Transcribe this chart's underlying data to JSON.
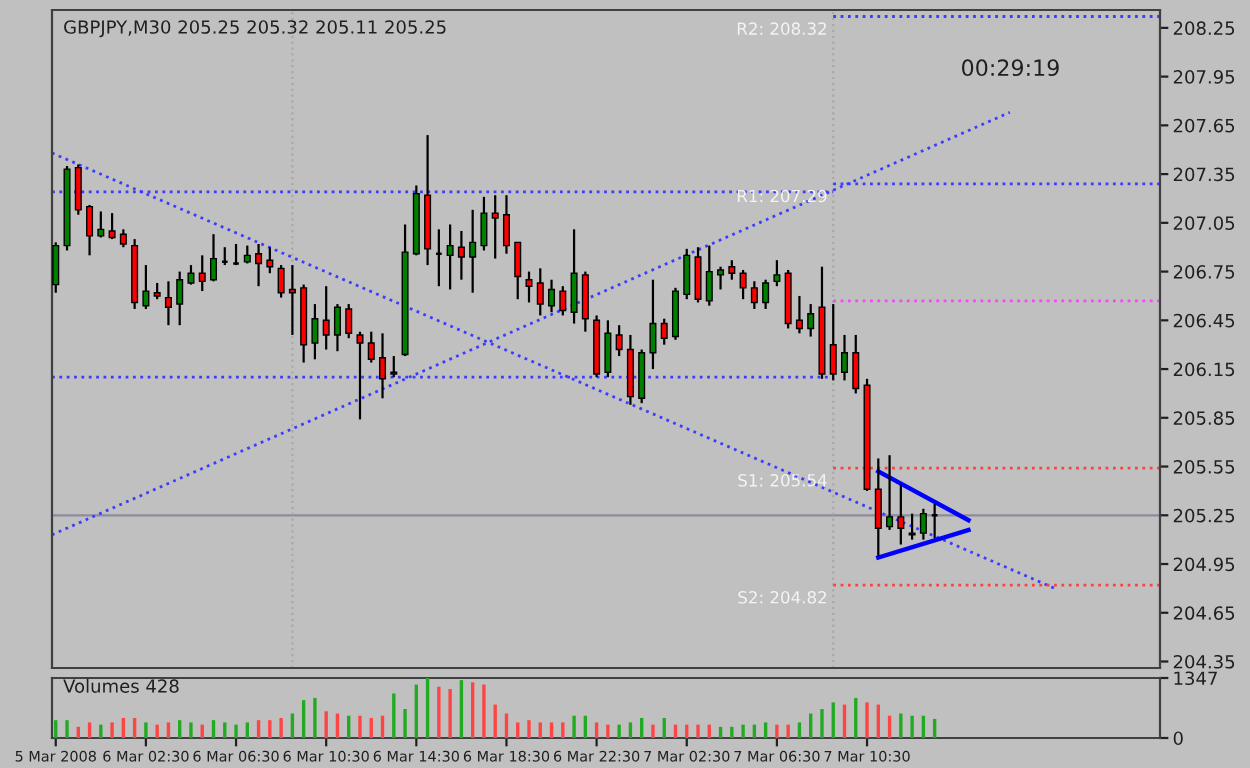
{
  "chart_data": [
    {
      "type": "candlestick",
      "title": "GBPJPY,M30 205.25 205.32 205.11 205.25",
      "x": [
        "2008-03-05T22:30",
        "2008-03-05T23:00",
        "2008-03-05T23:30",
        "2008-03-06T00:00",
        "2008-03-06T00:30",
        "2008-03-06T01:00",
        "2008-03-06T01:30",
        "2008-03-06T02:00",
        "2008-03-06T02:30",
        "2008-03-06T03:00",
        "2008-03-06T03:30",
        "2008-03-06T04:00",
        "2008-03-06T04:30",
        "2008-03-06T05:00",
        "2008-03-06T05:30",
        "2008-03-06T06:00",
        "2008-03-06T06:30",
        "2008-03-06T07:00",
        "2008-03-06T07:30",
        "2008-03-06T08:00",
        "2008-03-06T08:30",
        "2008-03-06T09:00",
        "2008-03-06T09:30",
        "2008-03-06T10:00",
        "2008-03-06T10:30",
        "2008-03-06T11:00",
        "2008-03-06T11:30",
        "2008-03-06T12:00",
        "2008-03-06T12:30",
        "2008-03-06T13:00",
        "2008-03-06T13:30",
        "2008-03-06T14:00",
        "2008-03-06T14:30",
        "2008-03-06T15:00",
        "2008-03-06T15:30",
        "2008-03-06T16:00",
        "2008-03-06T16:30",
        "2008-03-06T17:00",
        "2008-03-06T17:30",
        "2008-03-06T18:00",
        "2008-03-06T18:30",
        "2008-03-06T19:00",
        "2008-03-06T19:30",
        "2008-03-06T20:00",
        "2008-03-06T20:30",
        "2008-03-06T21:00",
        "2008-03-06T21:30",
        "2008-03-06T22:00",
        "2008-03-06T22:30",
        "2008-03-06T23:00",
        "2008-03-06T23:30",
        "2008-03-07T00:00",
        "2008-03-07T00:30",
        "2008-03-07T01:00",
        "2008-03-07T01:30",
        "2008-03-07T02:00",
        "2008-03-07T02:30",
        "2008-03-07T03:00",
        "2008-03-07T03:30",
        "2008-03-07T04:00",
        "2008-03-07T04:30",
        "2008-03-07T05:00",
        "2008-03-07T05:30",
        "2008-03-07T06:00",
        "2008-03-07T06:30",
        "2008-03-07T07:00",
        "2008-03-07T07:30",
        "2008-03-07T08:00",
        "2008-03-07T08:30",
        "2008-03-07T09:00",
        "2008-03-07T09:30",
        "2008-03-07T10:00",
        "2008-03-07T10:30",
        "2008-03-07T11:00",
        "2008-03-07T11:30",
        "2008-03-07T12:00",
        "2008-03-07T12:30",
        "2008-03-07T13:00",
        "2008-03-07T13:30"
      ],
      "ohlc": [
        [
          206.67,
          206.93,
          206.62,
          206.91
        ],
        [
          206.91,
          207.4,
          206.88,
          207.38
        ],
        [
          207.39,
          207.41,
          207.1,
          207.13
        ],
        [
          207.15,
          207.16,
          206.85,
          206.97
        ],
        [
          206.97,
          207.12,
          206.96,
          207.01
        ],
        [
          207.0,
          207.11,
          206.95,
          206.96
        ],
        [
          206.98,
          207.01,
          206.9,
          206.92
        ],
        [
          206.91,
          206.95,
          206.52,
          206.56
        ],
        [
          206.54,
          206.79,
          206.52,
          206.63
        ],
        [
          206.62,
          206.68,
          206.58,
          206.6
        ],
        [
          206.59,
          206.69,
          206.42,
          206.53
        ],
        [
          206.55,
          206.75,
          206.42,
          206.7
        ],
        [
          206.68,
          206.79,
          206.67,
          206.74
        ],
        [
          206.74,
          206.85,
          206.63,
          206.69
        ],
        [
          206.7,
          206.98,
          206.69,
          206.83
        ],
        [
          206.81,
          206.9,
          206.79,
          206.81
        ],
        [
          206.8,
          206.92,
          206.79,
          206.8
        ],
        [
          206.81,
          206.91,
          206.8,
          206.85
        ],
        [
          206.86,
          206.92,
          206.66,
          206.8
        ],
        [
          206.82,
          206.9,
          206.74,
          206.78
        ],
        [
          206.77,
          206.79,
          206.59,
          206.62
        ],
        [
          206.64,
          206.79,
          206.36,
          206.62
        ],
        [
          206.65,
          206.67,
          206.19,
          206.3
        ],
        [
          206.31,
          206.55,
          206.21,
          206.46
        ],
        [
          206.45,
          206.66,
          206.27,
          206.36
        ],
        [
          206.36,
          206.55,
          206.26,
          206.53
        ],
        [
          206.52,
          206.55,
          206.34,
          206.37
        ],
        [
          206.36,
          206.38,
          205.84,
          206.31
        ],
        [
          206.31,
          206.38,
          206.19,
          206.21
        ],
        [
          206.22,
          206.37,
          205.97,
          206.09
        ],
        [
          206.12,
          206.23,
          206.1,
          206.13
        ],
        [
          206.24,
          207.04,
          206.23,
          206.87
        ],
        [
          206.86,
          207.28,
          206.85,
          207.23
        ],
        [
          207.22,
          207.59,
          206.79,
          206.89
        ],
        [
          206.86,
          207.01,
          206.66,
          206.86
        ],
        [
          206.85,
          207.04,
          206.64,
          206.91
        ],
        [
          206.9,
          207.0,
          206.7,
          206.84
        ],
        [
          206.84,
          207.13,
          206.62,
          206.93
        ],
        [
          206.91,
          207.21,
          206.88,
          207.11
        ],
        [
          207.11,
          207.22,
          206.83,
          207.08
        ],
        [
          207.1,
          207.22,
          206.86,
          206.91
        ],
        [
          206.93,
          206.93,
          206.58,
          206.72
        ],
        [
          206.7,
          206.75,
          206.56,
          206.66
        ],
        [
          206.68,
          206.77,
          206.48,
          206.55
        ],
        [
          206.54,
          206.7,
          206.5,
          206.64
        ],
        [
          206.63,
          206.66,
          206.48,
          206.51
        ],
        [
          206.5,
          207.01,
          206.43,
          206.74
        ],
        [
          206.73,
          206.75,
          206.38,
          206.46
        ],
        [
          206.45,
          206.48,
          206.1,
          206.12
        ],
        [
          206.13,
          206.45,
          206.1,
          206.37
        ],
        [
          206.36,
          206.42,
          206.23,
          206.27
        ],
        [
          206.27,
          206.36,
          205.93,
          205.98
        ],
        [
          205.97,
          206.27,
          205.94,
          206.25
        ],
        [
          206.25,
          206.7,
          206.15,
          206.43
        ],
        [
          206.43,
          206.46,
          206.3,
          206.34
        ],
        [
          206.35,
          206.65,
          206.33,
          206.63
        ],
        [
          206.61,
          206.89,
          206.58,
          206.85
        ],
        [
          206.84,
          206.9,
          206.56,
          206.58
        ],
        [
          206.57,
          206.91,
          206.54,
          206.75
        ],
        [
          206.73,
          206.78,
          206.64,
          206.76
        ],
        [
          206.78,
          206.82,
          206.7,
          206.74
        ],
        [
          206.74,
          206.76,
          206.58,
          206.65
        ],
        [
          206.65,
          206.69,
          206.52,
          206.56
        ],
        [
          206.56,
          206.7,
          206.52,
          206.68
        ],
        [
          206.69,
          206.82,
          206.66,
          206.73
        ],
        [
          206.74,
          206.76,
          206.4,
          206.43
        ],
        [
          206.45,
          206.6,
          206.37,
          206.4
        ],
        [
          206.4,
          206.55,
          206.35,
          206.49
        ],
        [
          206.53,
          206.78,
          206.09,
          206.12
        ],
        [
          206.3,
          206.55,
          206.08,
          206.12
        ],
        [
          206.13,
          206.36,
          206.08,
          206.25
        ],
        [
          206.25,
          206.36,
          206.0,
          206.03
        ],
        [
          206.05,
          206.09,
          205.4,
          205.41
        ],
        [
          205.41,
          205.6,
          205.0,
          205.17
        ],
        [
          205.18,
          205.62,
          205.16,
          205.24
        ],
        [
          205.24,
          205.44,
          205.07,
          205.17
        ],
        [
          205.13,
          205.26,
          205.1,
          205.14
        ],
        [
          205.14,
          205.29,
          205.1,
          205.26
        ],
        [
          205.25,
          205.32,
          205.11,
          205.25
        ]
      ],
      "colors": [
        "#008000",
        "#008000",
        "#ff0000",
        "#ff0000",
        "#008000",
        "#ff0000",
        "#ff0000",
        "#ff0000",
        "#008000",
        "#ff0000",
        "#ff0000",
        "#008000",
        "#008000",
        "#ff0000",
        "#008000",
        "#000000",
        "#000000",
        "#008000",
        "#ff0000",
        "#ff0000",
        "#ff0000",
        "#ff0000",
        "#ff0000",
        "#008000",
        "#ff0000",
        "#008000",
        "#ff0000",
        "#ff0000",
        "#ff0000",
        "#ff0000",
        "#008000",
        "#008000",
        "#008000",
        "#ff0000",
        "#000000",
        "#008000",
        "#ff0000",
        "#008000",
        "#008000",
        "#ff0000",
        "#ff0000",
        "#ff0000",
        "#ff0000",
        "#ff0000",
        "#008000",
        "#ff0000",
        "#008000",
        "#ff0000",
        "#ff0000",
        "#008000",
        "#ff0000",
        "#ff0000",
        "#008000",
        "#008000",
        "#ff0000",
        "#008000",
        "#008000",
        "#ff0000",
        "#008000",
        "#008000",
        "#ff0000",
        "#ff0000",
        "#ff0000",
        "#008000",
        "#008000",
        "#ff0000",
        "#ff0000",
        "#008000",
        "#ff0000",
        "#ff0000",
        "#008000",
        "#ff0000",
        "#ff0000",
        "#ff0000",
        "#008000",
        "#ff0000",
        "#008000",
        "#008000",
        "#000000"
      ],
      "series": [
        {
          "type": "line",
          "x": [
            "2008-03-05T22:20",
            "2008-03-07T18:50"
          ],
          "values": [
            207.48,
            204.8
          ],
          "color": "#3c3cff",
          "line_style": "dotted"
        },
        {
          "type": "line",
          "x": [
            "2008-03-05T22:20",
            "2008-03-07T16:50"
          ],
          "values": [
            205.13,
            207.73
          ],
          "color": "#3c3cff",
          "line_style": "dotted"
        },
        {
          "type": "line",
          "x": [
            "2008-03-05T22:20",
            "2008-03-07T09:00"
          ],
          "values": [
            207.24,
            207.24
          ],
          "color": "#3c3cff",
          "line_style": "dotted"
        },
        {
          "type": "line",
          "x": [
            "2008-03-05T22:20",
            "2008-03-07T09:00"
          ],
          "values": [
            206.1,
            206.1
          ],
          "color": "#3c3cff",
          "line_style": "dotted"
        },
        {
          "type": "line",
          "x": [
            "2008-03-07T09:00",
            "2008-03-07T23:30"
          ],
          "values": [
            208.32,
            208.32
          ],
          "color": "#3c3cff",
          "line_style": "dotted",
          "name": "R2: 208.32"
        },
        {
          "type": "line",
          "x": [
            "2008-03-07T09:00",
            "2008-03-07T23:30"
          ],
          "values": [
            207.29,
            207.29
          ],
          "color": "#3c3cff",
          "line_style": "dotted",
          "name": "R1: 207.29"
        },
        {
          "type": "line",
          "x": [
            "2008-03-07T09:00",
            "2008-03-07T23:30"
          ],
          "values": [
            206.57,
            206.57
          ],
          "color": "#ff40ff",
          "line_style": "dotted"
        },
        {
          "type": "line",
          "x": [
            "2008-03-07T09:00",
            "2008-03-07T23:30"
          ],
          "values": [
            205.54,
            205.54
          ],
          "color": "#ff4040",
          "line_style": "dotted",
          "name": "S1: 205.54"
        },
        {
          "type": "line",
          "x": [
            "2008-03-07T09:00",
            "2008-03-07T23:30"
          ],
          "values": [
            204.82,
            204.82
          ],
          "color": "#ff4040",
          "line_style": "dotted",
          "name": "S2: 204.82"
        },
        {
          "type": "line",
          "x": [
            "2008-03-07T11:00",
            "2008-03-07T15:00"
          ],
          "values": [
            205.52,
            205.22
          ],
          "color": "#0000ff",
          "line_style": "solid"
        },
        {
          "type": "line",
          "x": [
            "2008-03-07T11:00",
            "2008-03-07T15:00"
          ],
          "values": [
            204.99,
            205.16
          ],
          "color": "#0000ff",
          "line_style": "solid"
        }
      ],
      "ref_lines": [
        {
          "axis": "y",
          "value": 205.25,
          "color": "#8c8c9c",
          "line_style": "solid"
        },
        {
          "axis": "x",
          "value": "2008-03-06T09:00",
          "color": "#a8a8a8",
          "line_style": "dotted"
        },
        {
          "axis": "x",
          "value": "2008-03-07T09:00",
          "color": "#a8a8a8",
          "line_style": "dotted"
        }
      ],
      "annotations": [
        "00:29:19"
      ],
      "xlim": [
        "2008-03-05T22:20",
        "2008-03-07T23:30"
      ],
      "ylim": [
        204.31,
        208.36
      ],
      "yticks": [
        204.35,
        204.65,
        204.95,
        205.25,
        205.55,
        205.85,
        206.15,
        206.45,
        206.75,
        207.05,
        207.35,
        207.65,
        207.95,
        208.25
      ],
      "tick_labels": "y"
    },
    {
      "type": "bar",
      "title": "Volumes 428",
      "x": [
        "2008-03-05T22:30",
        "2008-03-05T23:00",
        "2008-03-05T23:30",
        "2008-03-06T00:00",
        "2008-03-06T00:30",
        "2008-03-06T01:00",
        "2008-03-06T01:30",
        "2008-03-06T02:00",
        "2008-03-06T02:30",
        "2008-03-06T03:00",
        "2008-03-06T03:30",
        "2008-03-06T04:00",
        "2008-03-06T04:30",
        "2008-03-06T05:00",
        "2008-03-06T05:30",
        "2008-03-06T06:00",
        "2008-03-06T06:30",
        "2008-03-06T07:00",
        "2008-03-06T07:30",
        "2008-03-06T08:00",
        "2008-03-06T08:30",
        "2008-03-06T09:00",
        "2008-03-06T09:30",
        "2008-03-06T10:00",
        "2008-03-06T10:30",
        "2008-03-06T11:00",
        "2008-03-06T11:30",
        "2008-03-06T12:00",
        "2008-03-06T12:30",
        "2008-03-06T13:00",
        "2008-03-06T13:30",
        "2008-03-06T14:00",
        "2008-03-06T14:30",
        "2008-03-06T15:00",
        "2008-03-06T15:30",
        "2008-03-06T16:00",
        "2008-03-06T16:30",
        "2008-03-06T17:00",
        "2008-03-06T17:30",
        "2008-03-06T18:00",
        "2008-03-06T18:30",
        "2008-03-06T19:00",
        "2008-03-06T19:30",
        "2008-03-06T20:00",
        "2008-03-06T20:30",
        "2008-03-06T21:00",
        "2008-03-06T21:30",
        "2008-03-06T22:00",
        "2008-03-06T22:30",
        "2008-03-06T23:00",
        "2008-03-06T23:30",
        "2008-03-07T00:00",
        "2008-03-07T00:30",
        "2008-03-07T01:00",
        "2008-03-07T01:30",
        "2008-03-07T02:00",
        "2008-03-07T02:30",
        "2008-03-07T03:00",
        "2008-03-07T03:30",
        "2008-03-07T04:00",
        "2008-03-07T04:30",
        "2008-03-07T05:00",
        "2008-03-07T05:30",
        "2008-03-07T06:00",
        "2008-03-07T06:30",
        "2008-03-07T07:00",
        "2008-03-07T07:30",
        "2008-03-07T08:00",
        "2008-03-07T08:30",
        "2008-03-07T09:00",
        "2008-03-07T09:30",
        "2008-03-07T10:00",
        "2008-03-07T10:30",
        "2008-03-07T11:00",
        "2008-03-07T11:30",
        "2008-03-07T12:00",
        "2008-03-07T12:30",
        "2008-03-07T13:00",
        "2008-03-07T13:30"
      ],
      "values": [
        400,
        400,
        250,
        350,
        300,
        350,
        450,
        450,
        350,
        300,
        350,
        400,
        350,
        300,
        400,
        350,
        300,
        350,
        400,
        400,
        450,
        550,
        850,
        900,
        600,
        550,
        500,
        500,
        450,
        500,
        1000,
        650,
        1200,
        1347,
        1150,
        1100,
        1300,
        1250,
        1200,
        750,
        550,
        350,
        400,
        350,
        350,
        350,
        500,
        500,
        350,
        300,
        300,
        350,
        450,
        300,
        450,
        300,
        300,
        300,
        300,
        250,
        250,
        300,
        300,
        350,
        300,
        300,
        350,
        550,
        650,
        800,
        750,
        900,
        800,
        750,
        500,
        550,
        500,
        500,
        428
      ],
      "colors": [
        "#22aa22",
        "#22aa22",
        "#ff4444",
        "#ff4444",
        "#22aa22",
        "#ff4444",
        "#ff4444",
        "#ff4444",
        "#22aa22",
        "#ff4444",
        "#ff4444",
        "#22aa22",
        "#22aa22",
        "#ff4444",
        "#22aa22",
        "#22aa22",
        "#22aa22",
        "#22aa22",
        "#ff4444",
        "#ff4444",
        "#ff4444",
        "#22aa22",
        "#22aa22",
        "#22aa22",
        "#ff4444",
        "#ff4444",
        "#22aa22",
        "#ff4444",
        "#ff4444",
        "#ff4444",
        "#22aa22",
        "#22aa22",
        "#22aa22",
        "#22aa22",
        "#ff4444",
        "#ff4444",
        "#22aa22",
        "#ff4444",
        "#ff4444",
        "#ff4444",
        "#ff4444",
        "#ff4444",
        "#ff4444",
        "#ff4444",
        "#ff4444",
        "#ff4444",
        "#22aa22",
        "#22aa22",
        "#ff4444",
        "#ff4444",
        "#22aa22",
        "#22aa22",
        "#22aa22",
        "#ff4444",
        "#22aa22",
        "#ff4444",
        "#ff4444",
        "#ff4444",
        "#ff4444",
        "#22aa22",
        "#22aa22",
        "#22aa22",
        "#22aa22",
        "#22aa22",
        "#ff4444",
        "#ff4444",
        "#22aa22",
        "#22aa22",
        "#22aa22",
        "#22aa22",
        "#ff4444",
        "#22aa22",
        "#ff4444",
        "#ff4444",
        "#ff4444",
        "#22aa22",
        "#22aa22",
        "#22aa22",
        "#22aa22"
      ],
      "xlim": [
        "2008-03-05T22:20",
        "2008-03-07T23:30"
      ],
      "xticks": [
        {
          "value": "2008-03-05T22:30",
          "label": "5 Mar 2008"
        },
        {
          "value": "2008-03-06T02:30",
          "label": "6 Mar 02:30"
        },
        {
          "value": "2008-03-06T06:30",
          "label": "6 Mar 06:30"
        },
        {
          "value": "2008-03-06T10:30",
          "label": "6 Mar 10:30"
        },
        {
          "value": "2008-03-06T14:30",
          "label": "6 Mar 14:30"
        },
        {
          "value": "2008-03-06T18:30",
          "label": "6 Mar 18:30"
        },
        {
          "value": "2008-03-06T22:30",
          "label": "6 Mar 22:30"
        },
        {
          "value": "2008-03-07T02:30",
          "label": "7 Mar 02:30"
        },
        {
          "value": "2008-03-07T06:30",
          "label": "7 Mar 06:30"
        },
        {
          "value": "2008-03-07T10:30",
          "label": "7 Mar 10:30"
        }
      ],
      "ylim": [
        0,
        1347
      ],
      "yticks": [
        0,
        1347
      ]
    }
  ]
}
